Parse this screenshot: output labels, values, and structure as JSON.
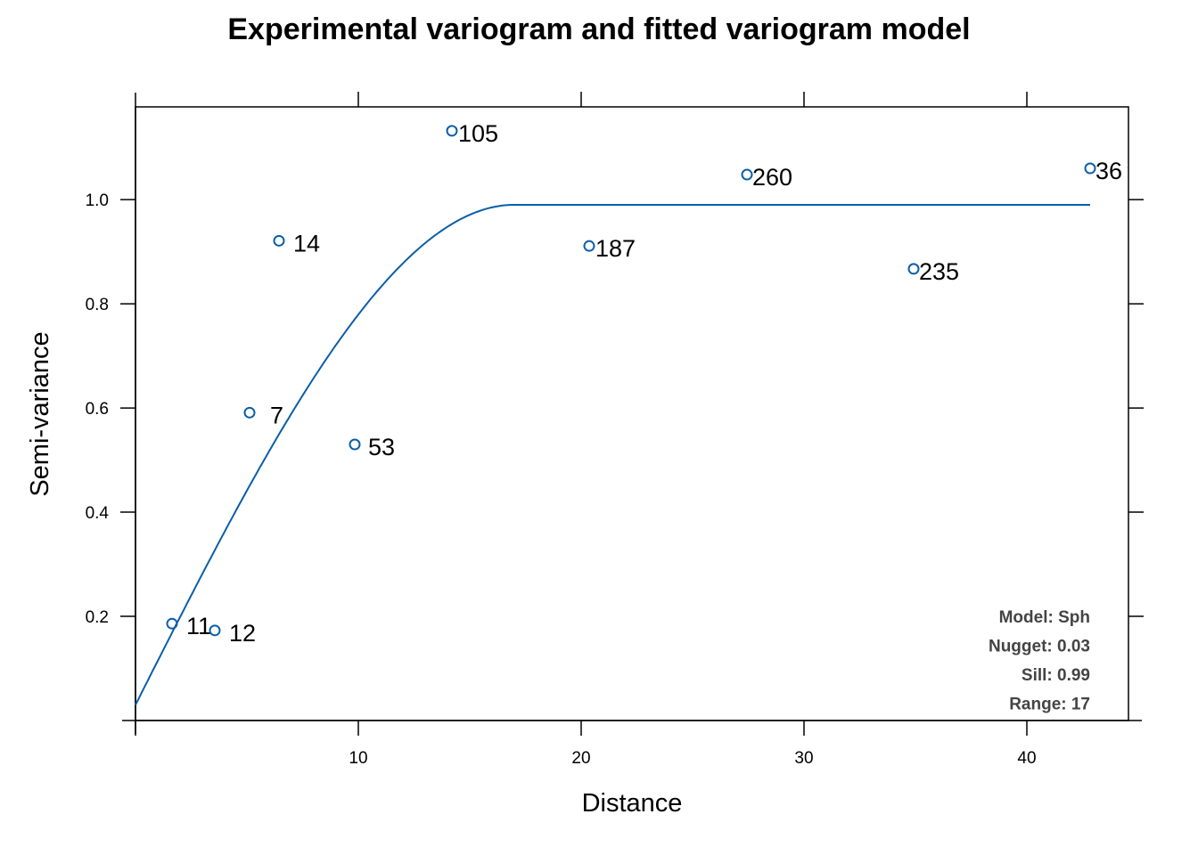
{
  "chart_data": {
    "type": "scatter",
    "title": "Experimental variogram and fitted variogram model",
    "xlabel": "Distance",
    "ylabel": "Semi-variance",
    "xlim": [
      0,
      44.56
    ],
    "ylim": [
      0,
      1.178
    ],
    "x_ticks": [
      10,
      20,
      30,
      40
    ],
    "y_ticks": [
      0.2,
      0.4,
      0.6,
      0.8,
      1.0
    ],
    "x_tick_labels": [
      "10",
      "20",
      "30",
      "40"
    ],
    "y_tick_labels": [
      "0.2",
      "0.4",
      "0.6",
      "0.8",
      "1.0"
    ],
    "grid": false,
    "point_color": "#0b5ea8",
    "points": [
      {
        "x": 1.64,
        "y": 0.186,
        "label": "11"
      },
      {
        "x": 3.56,
        "y": 0.173,
        "label": "12"
      },
      {
        "x": 5.12,
        "y": 0.591,
        "label": "7"
      },
      {
        "x": 6.44,
        "y": 0.921,
        "label": "14"
      },
      {
        "x": 9.84,
        "y": 0.53,
        "label": "53"
      },
      {
        "x": 14.2,
        "y": 1.132,
        "label": "105"
      },
      {
        "x": 20.36,
        "y": 0.911,
        "label": "187"
      },
      {
        "x": 27.44,
        "y": 1.048,
        "label": "260"
      },
      {
        "x": 34.92,
        "y": 0.867,
        "label": "235"
      },
      {
        "x": 42.84,
        "y": 1.06,
        "label": "36"
      }
    ],
    "model": {
      "type": "Sph",
      "nugget": 0.03,
      "sill": 0.99,
      "range": 17,
      "x_max": 42.84
    },
    "annotations": [
      "Model: Sph",
      "Nugget: 0.03",
      "Sill: 0.99",
      "Range: 17"
    ],
    "annotation_placement": "bottom-right"
  }
}
